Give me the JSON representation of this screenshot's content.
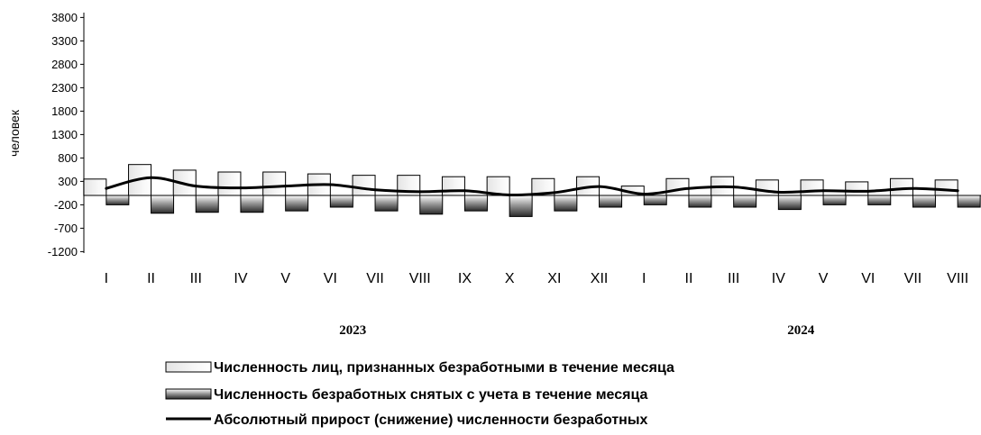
{
  "chart_data": {
    "type": "bar",
    "ylabel": "человек",
    "yticks": [
      3800,
      3300,
      2800,
      2300,
      1800,
      1300,
      800,
      300,
      -200,
      -700,
      -1200
    ],
    "ylim": [
      -1200,
      3800
    ],
    "categories": [
      "I",
      "II",
      "III",
      "IV",
      "V",
      "VI",
      "VII",
      "VIII",
      "IX",
      "X",
      "XI",
      "XII",
      "I",
      "II",
      "III",
      "IV",
      "V",
      "VI",
      "VII",
      "VIII"
    ],
    "years": [
      {
        "label": "2023",
        "start": 0,
        "end": 11
      },
      {
        "label": "2024",
        "start": 12,
        "end": 19
      }
    ],
    "series": [
      {
        "name": "Численность лиц, признанных безработными в течение месяца",
        "kind": "bar",
        "values": [
          350,
          660,
          540,
          500,
          500,
          460,
          430,
          430,
          400,
          400,
          360,
          400,
          200,
          360,
          400,
          330,
          330,
          290,
          360,
          330
        ]
      },
      {
        "name": "Численность безработных снятых с учета в течение месяца",
        "kind": "bar",
        "values": [
          -200,
          -380,
          -360,
          -360,
          -330,
          -250,
          -330,
          -400,
          -330,
          -450,
          -330,
          -250,
          -200,
          -250,
          -250,
          -300,
          -200,
          -200,
          -250,
          -250
        ]
      },
      {
        "name": "Абсолютный прирост (снижение) численности безработных",
        "kind": "line",
        "values": [
          150,
          380,
          200,
          160,
          200,
          230,
          120,
          80,
          100,
          10,
          60,
          190,
          30,
          150,
          180,
          70,
          100,
          90,
          150,
          100
        ]
      }
    ],
    "legend_position": "bottom",
    "grid": false
  }
}
